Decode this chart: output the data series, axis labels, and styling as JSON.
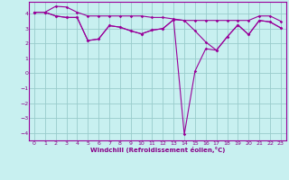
{
  "xlabel": "Windchill (Refroidissement éolien,°C)",
  "background_color": "#c8f0f0",
  "line_color": "#990099",
  "grid_color": "#99cccc",
  "xlim": [
    -0.5,
    23.5
  ],
  "ylim": [
    -4.5,
    4.8
  ],
  "xticks": [
    0,
    1,
    2,
    3,
    4,
    5,
    6,
    7,
    8,
    9,
    10,
    11,
    12,
    13,
    14,
    15,
    16,
    17,
    18,
    19,
    20,
    21,
    22,
    23
  ],
  "yticks": [
    -4,
    -3,
    -2,
    -1,
    0,
    1,
    2,
    3,
    4
  ],
  "line_top": [
    4.1,
    4.1,
    4.5,
    4.45,
    4.1,
    3.85,
    3.85,
    3.85,
    3.85,
    3.85,
    3.85,
    3.75,
    3.75,
    3.65,
    3.55,
    3.55,
    3.55,
    3.55,
    3.55,
    3.55,
    3.55,
    3.85,
    3.85,
    3.5
  ],
  "line_mid": [
    4.1,
    4.1,
    3.85,
    3.75,
    3.75,
    2.2,
    2.3,
    3.2,
    3.1,
    2.85,
    2.65,
    2.9,
    3.0,
    3.6,
    3.55,
    2.85,
    2.1,
    1.55,
    2.45,
    3.25,
    2.6,
    3.55,
    3.45,
    3.05
  ],
  "line_dip": [
    4.1,
    4.1,
    3.85,
    3.75,
    3.75,
    2.2,
    2.3,
    3.2,
    3.1,
    2.85,
    2.65,
    2.9,
    3.0,
    3.6,
    -4.1,
    0.15,
    1.65,
    1.55,
    2.45,
    3.25,
    2.6,
    3.55,
    3.45,
    3.05
  ],
  "font_color": "#880088"
}
